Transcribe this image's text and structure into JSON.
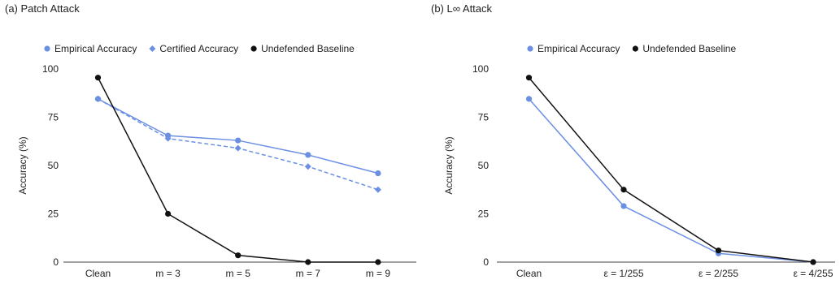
{
  "colors": {
    "empirical": "#6b8fe3",
    "certified": "#6b8fe3",
    "baseline": "#111111",
    "axis": "#444444"
  },
  "chart_data": [
    {
      "type": "line",
      "title": "(a) Patch Attack",
      "xlabel": "",
      "ylabel": "Accuracy (%)",
      "ylim": [
        0,
        100
      ],
      "yticks": [
        "0",
        "25",
        "50",
        "75",
        "100"
      ],
      "grid": false,
      "legend": "top-left",
      "categories": [
        "Clean",
        "m = 3",
        "m = 5",
        "m = 7",
        "m = 9"
      ],
      "series": [
        {
          "name": "Empirical Accuracy",
          "marker": "circle",
          "dash": false,
          "color": "#6b8fe3",
          "values": [
            84.5,
            65.5,
            63,
            55.5,
            46
          ]
        },
        {
          "name": "Certified Accuracy",
          "marker": "diamond",
          "dash": true,
          "color": "#6b8fe3",
          "values": [
            84.5,
            64,
            59,
            49.5,
            37.5
          ]
        },
        {
          "name": "Undefended Baseline",
          "marker": "circle",
          "dash": false,
          "color": "#111111",
          "values": [
            95.5,
            25,
            3.5,
            0,
            0
          ]
        }
      ]
    },
    {
      "type": "line",
      "title": "(b) L∞  Attack",
      "xlabel": "",
      "ylabel": "Accuracy (%)",
      "ylim": [
        0,
        100
      ],
      "yticks": [
        "0",
        "25",
        "50",
        "75",
        "100"
      ],
      "grid": false,
      "legend": "top-center",
      "categories": [
        "Clean",
        "ε = 1/255",
        "ε = 2/255",
        "ε = 4/255"
      ],
      "series": [
        {
          "name": "Empirical Accuracy",
          "marker": "circle",
          "dash": false,
          "color": "#6b8fe3",
          "values": [
            84.5,
            29,
            4.5,
            0
          ]
        },
        {
          "name": "Undefended Baseline",
          "marker": "circle",
          "dash": false,
          "color": "#111111",
          "values": [
            95.5,
            37.5,
            6,
            0
          ]
        }
      ]
    }
  ]
}
